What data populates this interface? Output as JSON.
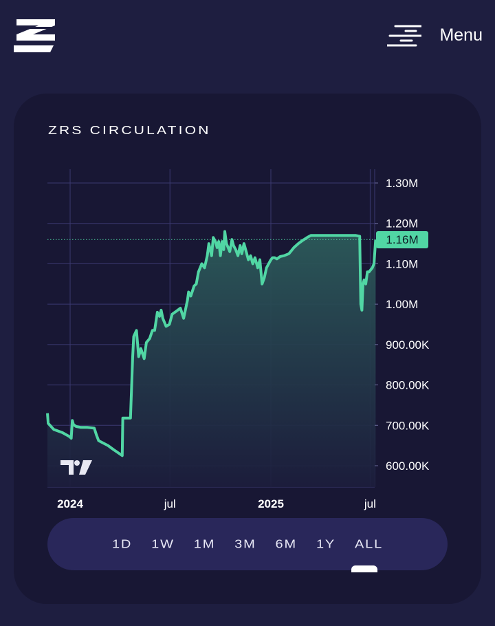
{
  "header": {
    "menu_label": "Menu",
    "logo_icon": "z-logo-icon",
    "menu_icon": "hamburger-lines-icon"
  },
  "card": {
    "title": "ZRS CIRCULATION",
    "price_tag": "1.16M"
  },
  "range": {
    "options": [
      "1D",
      "1W",
      "1M",
      "3M",
      "6M",
      "1Y",
      "ALL"
    ],
    "selected": "ALL"
  },
  "colors": {
    "page_bg": "#1e1e40",
    "card_bg": "#181734",
    "line": "#51d6a4",
    "range_bar_bg": "#29275a"
  },
  "chart_data": {
    "type": "area",
    "title": "ZRS CIRCULATION",
    "y_ticks": [
      "1.30M",
      "1.20M",
      "1.10M",
      "1.00M",
      "900.00K",
      "800.00K",
      "700.00K",
      "600.00K"
    ],
    "y_tick_values": [
      1300000,
      1200000,
      1100000,
      1000000,
      900000,
      800000,
      700000,
      600000
    ],
    "x_ticks": [
      {
        "label": "2024",
        "date": "2024-01-01",
        "bold": true
      },
      {
        "label": "jul",
        "date": "2024-07-01",
        "bold": false
      },
      {
        "label": "2025",
        "date": "2025-01-01",
        "bold": true
      },
      {
        "label": "jul",
        "date": "2025-07-01",
        "bold": false
      }
    ],
    "current_value": 1160000,
    "current_label": "1.16M",
    "grid": true,
    "x": [
      "2023-11-20",
      "2023-11-22",
      "2023-12-02",
      "2023-12-18",
      "2023-12-31",
      "2024-01-03",
      "2024-01-05",
      "2024-01-07",
      "2024-01-12",
      "2024-01-20",
      "2024-02-01",
      "2024-02-14",
      "2024-02-18",
      "2024-02-22",
      "2024-03-10",
      "2024-03-20",
      "2024-04-02",
      "2024-04-05",
      "2024-04-06",
      "2024-04-12",
      "2024-04-18",
      "2024-04-20",
      "2024-04-24",
      "2024-04-26",
      "2024-05-01",
      "2024-05-05",
      "2024-05-09",
      "2024-05-15",
      "2024-05-19",
      "2024-05-25",
      "2024-05-30",
      "2024-06-03",
      "2024-06-08",
      "2024-06-12",
      "2024-06-15",
      "2024-06-18",
      "2024-06-24",
      "2024-06-30",
      "2024-07-05",
      "2024-07-10",
      "2024-07-20",
      "2024-07-26",
      "2024-08-02",
      "2024-08-04",
      "2024-08-08",
      "2024-08-14",
      "2024-08-18",
      "2024-08-22",
      "2024-08-28",
      "2024-09-02",
      "2024-09-07",
      "2024-09-10",
      "2024-09-15",
      "2024-09-18",
      "2024-09-22",
      "2024-09-25",
      "2024-09-28",
      "2024-10-01",
      "2024-10-04",
      "2024-10-07",
      "2024-10-09",
      "2024-10-12",
      "2024-10-15",
      "2024-10-18",
      "2024-10-22",
      "2024-10-25",
      "2024-10-29",
      "2024-11-02",
      "2024-11-06",
      "2024-11-09",
      "2024-11-13",
      "2024-11-17",
      "2024-11-21",
      "2024-11-25",
      "2024-11-29",
      "2024-12-03",
      "2024-12-08",
      "2024-12-12",
      "2024-12-16",
      "2024-12-20",
      "2024-12-24",
      "2024-12-28",
      "2025-01-01",
      "2025-01-04",
      "2025-01-08",
      "2025-01-12",
      "2025-01-18",
      "2025-01-25",
      "2025-02-03",
      "2025-02-12",
      "2025-02-20",
      "2025-02-28",
      "2025-03-08",
      "2025-03-15",
      "2025-03-25",
      "2025-04-05",
      "2025-04-20",
      "2025-05-05",
      "2025-05-20",
      "2025-06-05",
      "2025-06-12",
      "2025-06-14",
      "2025-06-16",
      "2025-06-18",
      "2025-06-20",
      "2025-06-23",
      "2025-06-26",
      "2025-06-29",
      "2025-07-02",
      "2025-07-05",
      "2025-07-08",
      "2025-07-11"
    ],
    "values": [
      730000,
      705000,
      690000,
      682000,
      672000,
      668000,
      712000,
      702000,
      697000,
      695000,
      695000,
      693000,
      676000,
      662000,
      650000,
      640000,
      628000,
      625000,
      718000,
      718000,
      718000,
      718000,
      870000,
      920000,
      935000,
      870000,
      890000,
      865000,
      905000,
      915000,
      935000,
      935000,
      980000,
      970000,
      985000,
      965000,
      945000,
      950000,
      975000,
      980000,
      990000,
      965000,
      1010000,
      1030000,
      1020000,
      1045000,
      1050000,
      1080000,
      1100000,
      1090000,
      1120000,
      1150000,
      1120000,
      1165000,
      1155000,
      1140000,
      1155000,
      1120000,
      1155000,
      1135000,
      1180000,
      1150000,
      1140000,
      1130000,
      1160000,
      1145000,
      1135000,
      1120000,
      1145000,
      1125000,
      1150000,
      1130000,
      1110000,
      1120000,
      1100000,
      1115000,
      1090000,
      1110000,
      1050000,
      1065000,
      1090000,
      1100000,
      1110000,
      1115000,
      1115000,
      1112000,
      1118000,
      1120000,
      1125000,
      1140000,
      1150000,
      1158000,
      1165000,
      1170000,
      1170000,
      1170000,
      1170000,
      1170000,
      1170000,
      1170000,
      1168000,
      1000000,
      985000,
      1050000,
      1060000,
      1050000,
      1080000,
      1080000,
      1085000,
      1090000,
      1100000,
      1160000
    ]
  }
}
